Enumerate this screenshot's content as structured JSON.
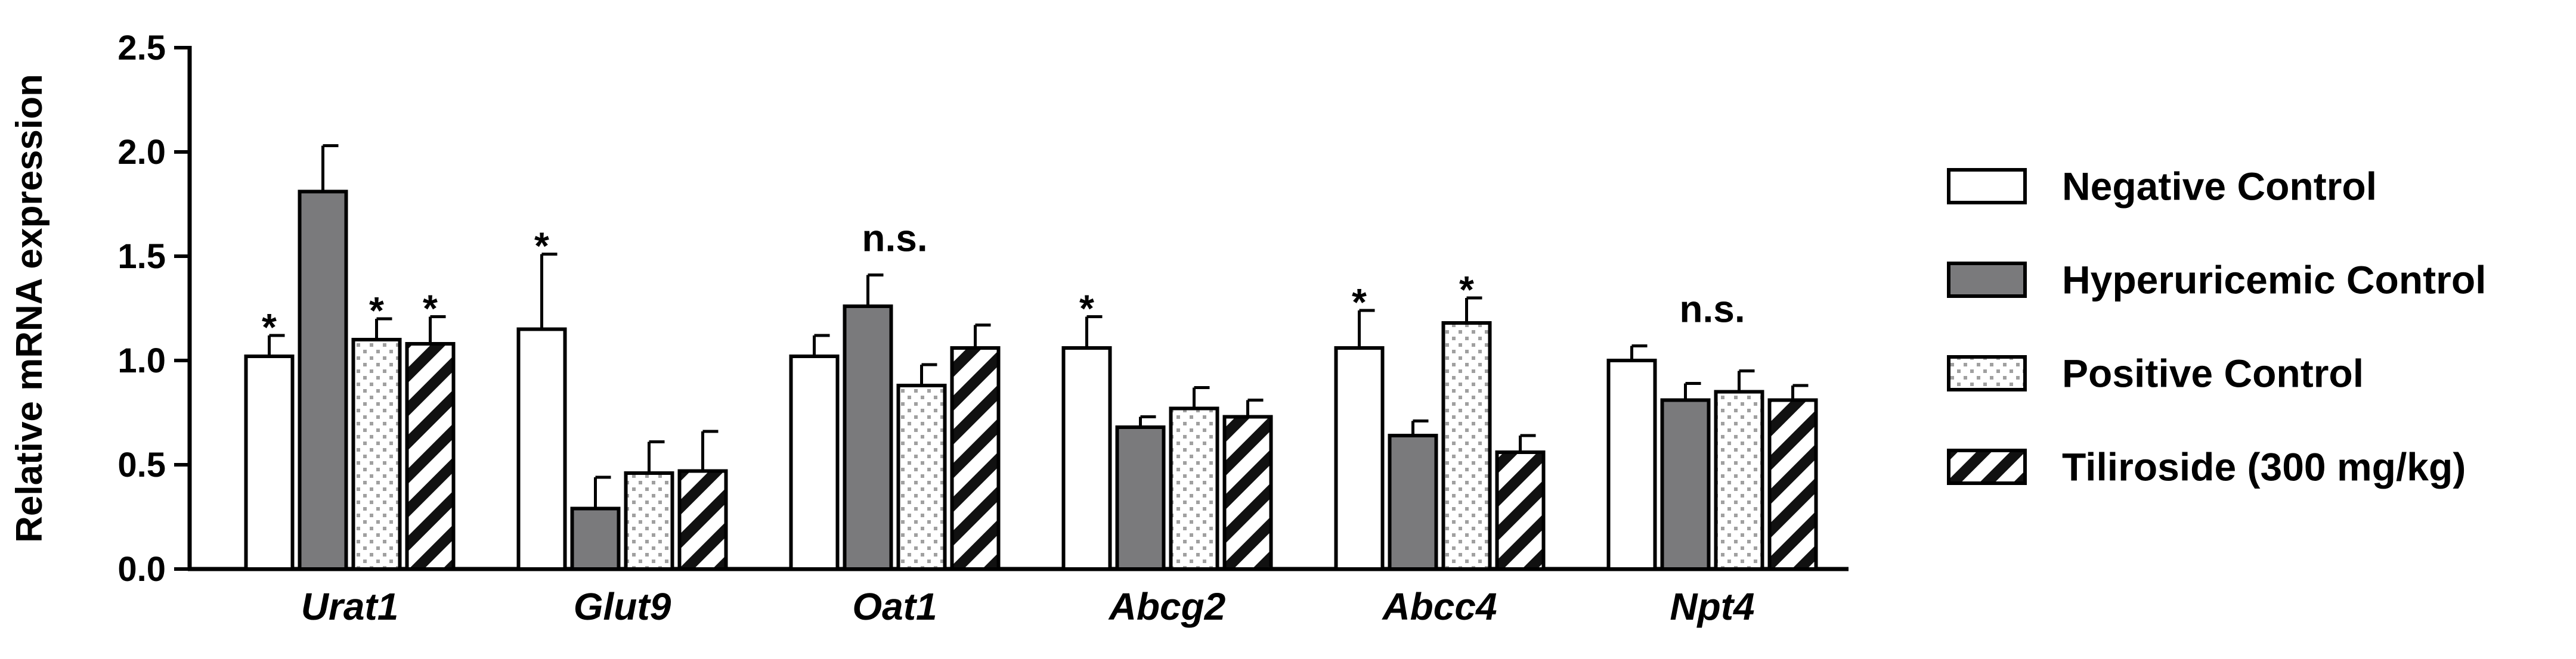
{
  "chart_data": {
    "type": "bar",
    "ylabel": "Relative mRNA expression",
    "xlabel": "",
    "ylim": [
      0,
      2.5
    ],
    "yticks": [
      "0.0",
      "0.5",
      "1.0",
      "1.5",
      "2.0",
      "2.5"
    ],
    "categories": [
      "Urat1",
      "Glut9",
      "Oat1",
      "Abcg2",
      "Abcc4",
      "Npt4"
    ],
    "series": [
      {
        "name": "Negative Control",
        "fill": "white",
        "values": [
          1.02,
          1.15,
          1.02,
          1.06,
          1.06,
          1.0
        ],
        "errors": [
          0.1,
          0.36,
          0.1,
          0.15,
          0.18,
          0.07
        ]
      },
      {
        "name": "Hyperuricemic Control",
        "fill": "gray",
        "values": [
          1.81,
          0.29,
          1.26,
          0.68,
          0.64,
          0.81
        ],
        "errors": [
          0.22,
          0.15,
          0.15,
          0.05,
          0.07,
          0.08
        ]
      },
      {
        "name": "Positive Control",
        "fill": "dots",
        "values": [
          1.1,
          0.46,
          0.88,
          0.77,
          1.18,
          0.85
        ],
        "errors": [
          0.1,
          0.15,
          0.1,
          0.1,
          0.12,
          0.1
        ]
      },
      {
        "name": "Tiliroside (300 mg/kg)",
        "fill": "stripes",
        "values": [
          1.08,
          0.47,
          1.06,
          0.73,
          0.56,
          0.81
        ],
        "errors": [
          0.13,
          0.19,
          0.11,
          0.08,
          0.08,
          0.07
        ]
      }
    ],
    "annotations": [
      {
        "category": 0,
        "series": 0,
        "text": "*"
      },
      {
        "category": 0,
        "series": 2,
        "text": "*"
      },
      {
        "category": 0,
        "series": 3,
        "text": "*"
      },
      {
        "category": 1,
        "series": 0,
        "text": "*"
      },
      {
        "category": 2,
        "series": -1,
        "text": "n.s."
      },
      {
        "category": 3,
        "series": 0,
        "text": "*"
      },
      {
        "category": 4,
        "series": 0,
        "text": "*"
      },
      {
        "category": 4,
        "series": 2,
        "text": "*"
      },
      {
        "category": 5,
        "series": -1,
        "text": "n.s."
      }
    ],
    "grid": false,
    "legend_position": "right"
  },
  "colors": {
    "gray": "#7a7a7c",
    "stroke": "#000000",
    "dots": "#a0a0a0"
  }
}
